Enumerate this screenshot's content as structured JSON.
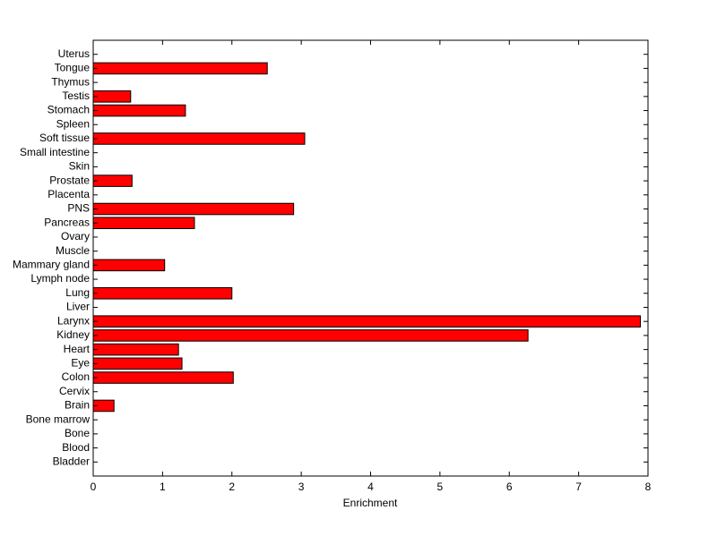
{
  "chart_data": {
    "type": "barh",
    "xlabel": "Enrichment",
    "categories": [
      "Bladder",
      "Blood",
      "Bone",
      "Bone marrow",
      "Brain",
      "Cervix",
      "Colon",
      "Eye",
      "Heart",
      "Kidney",
      "Larynx",
      "Liver",
      "Lung",
      "Lymph node",
      "Mammary gland",
      "Muscle",
      "Ovary",
      "Pancreas",
      "PNS",
      "Placenta",
      "Prostate",
      "Skin",
      "Small intestine",
      "Soft tissue",
      "Spleen",
      "Stomach",
      "Testis",
      "Thymus",
      "Tongue",
      "Uterus"
    ],
    "values": [
      0,
      0,
      0,
      0,
      0.3,
      0,
      2.02,
      1.28,
      1.23,
      6.27,
      7.89,
      0,
      2.0,
      0,
      1.03,
      0,
      0,
      1.46,
      2.89,
      0,
      0.56,
      0,
      0,
      3.05,
      0,
      1.33,
      0.54,
      0,
      2.51,
      0
    ],
    "color": "#ff0000",
    "xlim": [
      0,
      8
    ],
    "xticks": [
      0,
      1,
      2,
      3,
      4,
      5,
      6,
      7,
      8
    ]
  }
}
